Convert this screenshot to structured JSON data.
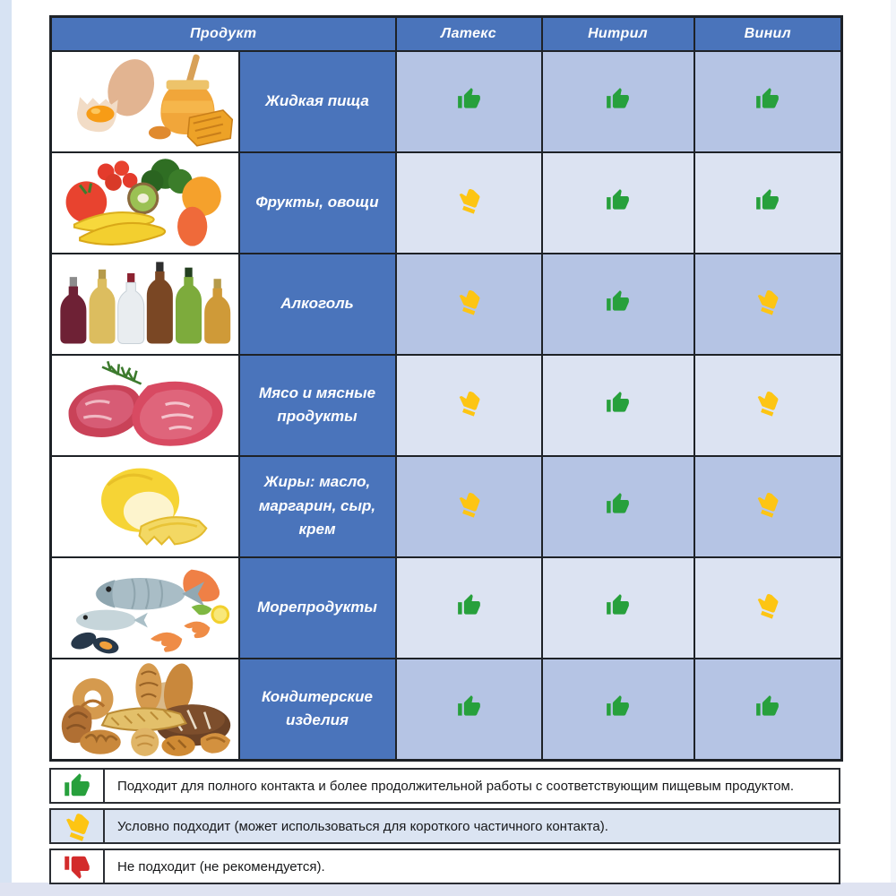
{
  "colors": {
    "header_bg": "#4a74bb",
    "row_dark": "#b5c4e4",
    "row_light": "#dce3f2",
    "border": "#1e2227",
    "suitable_green": "#27a03c",
    "conditional_yellow": "#fdc513",
    "not_suitable_red": "#d32b2b"
  },
  "table": {
    "headers": [
      "Продукт",
      "Латекс",
      "Нитрил",
      "Винил"
    ],
    "rows": [
      {
        "product": "Жидкая пища",
        "image": "eggs-honey-image",
        "ratings": {
          "latex": "suitable",
          "nitrile": "suitable",
          "vinyl": "suitable"
        }
      },
      {
        "product": "Фрукты, овощи",
        "image": "fruits-vegetables-image",
        "ratings": {
          "latex": "conditional",
          "nitrile": "suitable",
          "vinyl": "suitable"
        }
      },
      {
        "product": "Алкоголь",
        "image": "alcohol-bottles-image",
        "ratings": {
          "latex": "conditional",
          "nitrile": "suitable",
          "vinyl": "conditional"
        }
      },
      {
        "product": "Мясо и мясные продукты",
        "image": "meat-image",
        "ratings": {
          "latex": "conditional",
          "nitrile": "suitable",
          "vinyl": "conditional"
        }
      },
      {
        "product": "Жиры: масло, маргарин, сыр, крем",
        "image": "butter-image",
        "ratings": {
          "latex": "conditional",
          "nitrile": "suitable",
          "vinyl": "conditional"
        }
      },
      {
        "product": "Морепродукты",
        "image": "seafood-image",
        "ratings": {
          "latex": "suitable",
          "nitrile": "suitable",
          "vinyl": "conditional"
        }
      },
      {
        "product": "Кондитерские изделия",
        "image": "bakery-image",
        "ratings": {
          "latex": "suitable",
          "nitrile": "suitable",
          "vinyl": "suitable"
        }
      }
    ]
  },
  "legend": [
    {
      "state": "suitable",
      "icon": "green-thumb-up-icon",
      "text": "Подходит для полного контакта и более продолжительной работы с соответствующим пищевым продуктом."
    },
    {
      "state": "conditional",
      "icon": "yellow-thumb-tilted-icon",
      "text": "Условно подходит (может использоваться для короткого частичного контакта)."
    },
    {
      "state": "not-suitable",
      "icon": "red-thumb-down-icon",
      "text": "Не подходит (не рекомендуется)."
    }
  ]
}
